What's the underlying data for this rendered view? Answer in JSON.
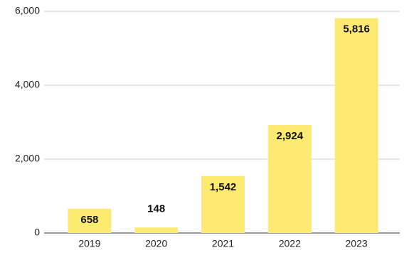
{
  "chart_data": {
    "type": "bar",
    "categories": [
      "2019",
      "2020",
      "2021",
      "2022",
      "2023"
    ],
    "values": [
      658,
      148,
      1542,
      2924,
      5816
    ],
    "value_labels": [
      "658",
      "148",
      "1,542",
      "2,924",
      "5,816"
    ],
    "color": "#fdeb71",
    "ylim": [
      0,
      6000
    ],
    "yticks": [
      0,
      {
        "value": 2000,
        "label": "2,000"
      },
      {
        "value": 4000,
        "label": "4,000"
      },
      {
        "value": 6000,
        "label": "6,000"
      }
    ],
    "grid": true
  }
}
